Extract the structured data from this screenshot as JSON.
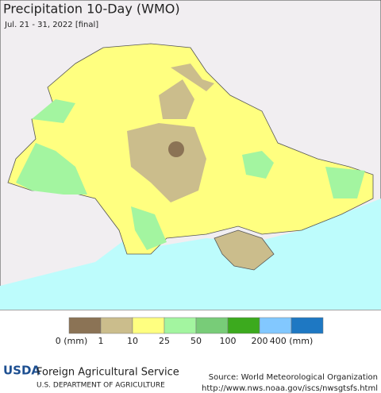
{
  "header": {
    "title": "Precipitation 10-Day (WMO)",
    "subtitle": "Jul. 21 - 31, 2022 [final]"
  },
  "legend": {
    "colors": [
      "#8b7355",
      "#cbbd8c",
      "#ffff80",
      "#a3f5a0",
      "#78cc78",
      "#3caa1e",
      "#82c8ff",
      "#1e78c3"
    ],
    "labels": [
      "0 (mm)",
      "1",
      "10",
      "25",
      "50",
      "100",
      "200",
      "400 (mm)"
    ]
  },
  "footer": {
    "logo": "USDA",
    "agency": "Foreign Agricultural Service",
    "department": "U.S. DEPARTMENT OF AGRICULTURE",
    "source": "Source: World Meteorological Organization",
    "url": "http://www.nws.noaa.gov/iscs/nwsgtsfs.html"
  }
}
